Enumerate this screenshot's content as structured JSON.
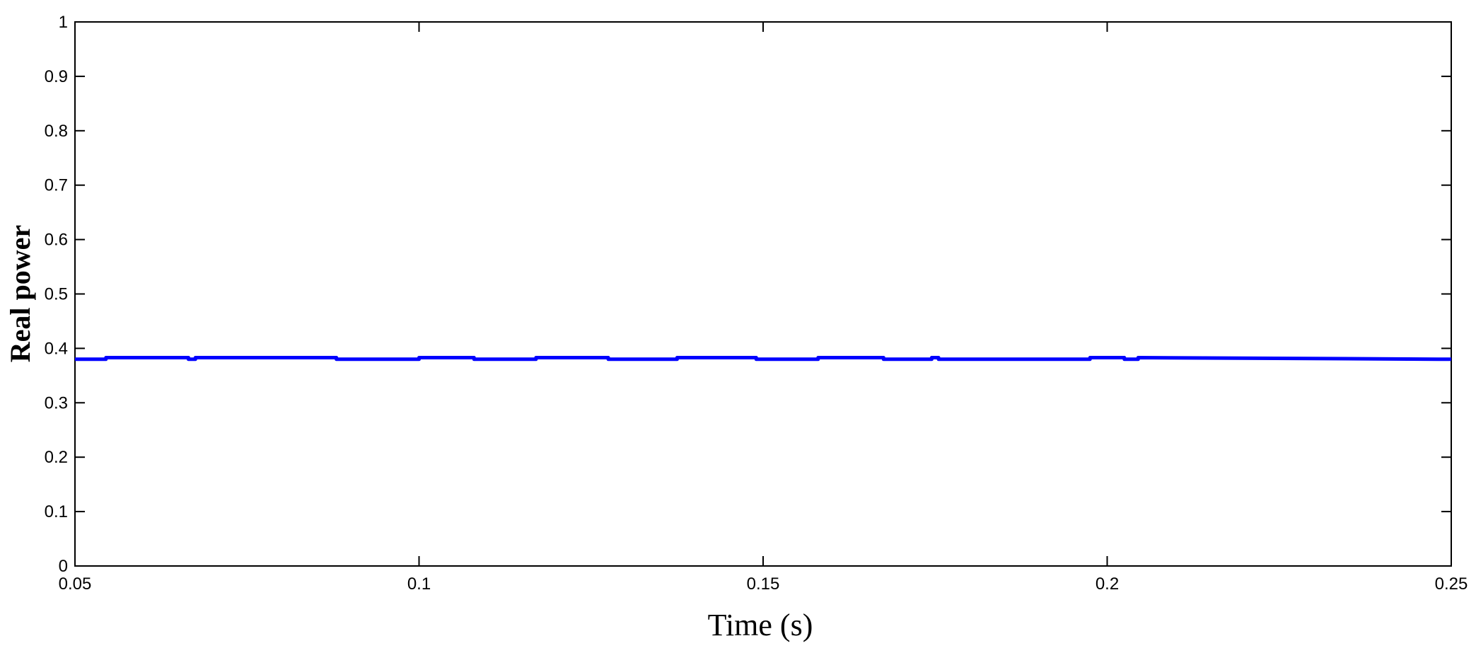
{
  "chart_data": {
    "type": "line",
    "xlabel": "Time (s)",
    "ylabel": "Real power",
    "xlim": [
      0.05,
      0.25
    ],
    "ylim": [
      0,
      1
    ],
    "xticks": [
      0.05,
      0.1,
      0.15,
      0.2,
      0.25
    ],
    "xtick_labels": [
      "0.05",
      "0.1",
      "0.15",
      "0.2",
      "0.25"
    ],
    "yticks": [
      0,
      0.1,
      0.2,
      0.3,
      0.4,
      0.5,
      0.6,
      0.7,
      0.8,
      0.9,
      1
    ],
    "ytick_labels": [
      "0",
      "0.1",
      "0.2",
      "0.3",
      "0.4",
      "0.5",
      "0.6",
      "0.7",
      "0.8",
      "0.9",
      "1"
    ],
    "grid": false,
    "series": [
      {
        "color": "#0000ff",
        "x": [
          0.05,
          0.0545,
          0.0545,
          0.0665,
          0.0665,
          0.0675,
          0.0675,
          0.088,
          0.088,
          0.1,
          0.1,
          0.108,
          0.108,
          0.117,
          0.117,
          0.1275,
          0.1275,
          0.1375,
          0.1375,
          0.149,
          0.149,
          0.158,
          0.158,
          0.1675,
          0.1675,
          0.1745,
          0.1745,
          0.1755,
          0.1755,
          0.1975,
          0.1975,
          0.2025,
          0.2025,
          0.2045,
          0.2045,
          0.25
        ],
        "y": [
          0.38,
          0.38,
          0.383,
          0.383,
          0.38,
          0.38,
          0.383,
          0.383,
          0.38,
          0.38,
          0.383,
          0.383,
          0.38,
          0.38,
          0.383,
          0.383,
          0.38,
          0.38,
          0.383,
          0.383,
          0.38,
          0.38,
          0.383,
          0.383,
          0.38,
          0.38,
          0.383,
          0.383,
          0.38,
          0.38,
          0.383,
          0.383,
          0.38,
          0.38,
          0.383,
          0.38
        ]
      }
    ]
  }
}
